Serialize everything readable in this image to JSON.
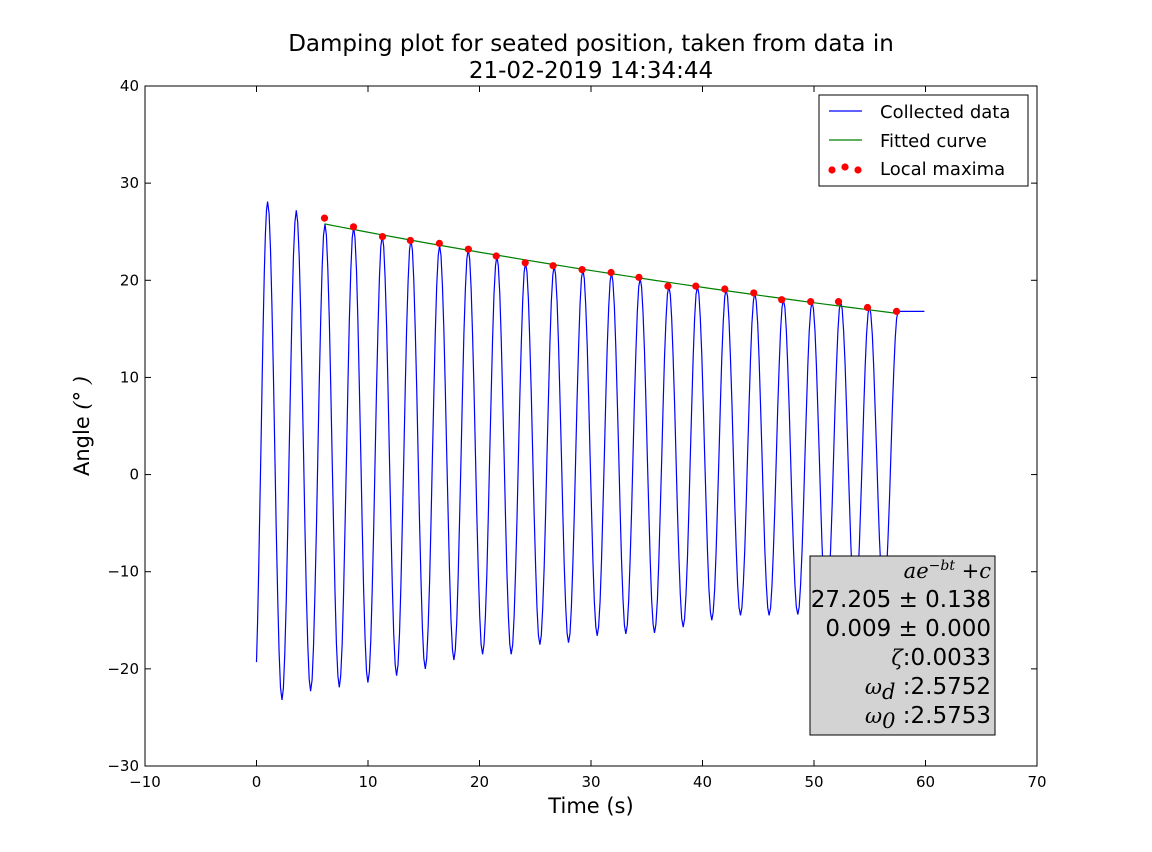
{
  "chart_data": {
    "type": "line",
    "title": [
      "Damping plot for seated position, taken from data in",
      "21-02-2019 14:34:44"
    ],
    "xlabel": "Time (s)",
    "ylabel": "Angle (°)",
    "ylabel_parts": {
      "text": "Angle ",
      "math": "(° )"
    },
    "xlim": [
      -10,
      70
    ],
    "ylim": [
      -30,
      40
    ],
    "xticks": [
      -10,
      0,
      10,
      20,
      30,
      40,
      50,
      60,
      70
    ],
    "yticks": [
      -30,
      -20,
      -10,
      0,
      10,
      20,
      30,
      40
    ],
    "grid": false,
    "legend": {
      "placement": "top-right",
      "entries": [
        {
          "label": "Collected data",
          "style": "line",
          "color": "#0000ff"
        },
        {
          "label": "Fitted curve",
          "style": "line",
          "color": "#008000"
        },
        {
          "label": "Local maxima",
          "style": "dots",
          "color": "#ff0000"
        }
      ]
    },
    "series": [
      {
        "name": "Collected data",
        "color": "#0000ff",
        "kind": "damped-oscillation",
        "x_range": [
          0,
          59.9
        ],
        "period": 2.57,
        "first_peak": 1.0,
        "peaks": [
          28.1,
          27.2,
          25.8,
          25.5,
          24.6,
          24.2,
          23.6,
          23.2,
          22.5,
          21.8,
          21.5,
          21.1,
          20.8,
          20.2,
          19.4,
          19.4,
          19.1,
          18.7,
          18.0,
          17.8,
          17.8,
          17.3,
          16.8
        ],
        "troughs": [
          -23.2,
          -22.3,
          -21.9,
          -21.4,
          -20.7,
          -20.0,
          -19.1,
          -18.5,
          -18.5,
          -17.5,
          -17.3,
          -16.6,
          -16.4,
          -16.3,
          -15.7,
          -15.0,
          -14.5,
          -14.5,
          -14.4,
          -14.0,
          -13.5,
          -12.7
        ],
        "start_value": -19.3,
        "end_value": 16.8
      },
      {
        "name": "Fitted curve",
        "color": "#008000",
        "kind": "exponential",
        "x_range": [
          6.1,
          57.4
        ],
        "y_range": [
          25.8,
          16.6
        ]
      },
      {
        "name": "Local maxima",
        "color": "#ff0000",
        "kind": "scatter",
        "x": [
          6.1,
          8.7,
          11.3,
          13.8,
          16.4,
          19.0,
          21.5,
          24.1,
          26.6,
          29.2,
          31.8,
          34.3,
          36.9,
          39.4,
          42.0,
          44.6,
          47.1,
          49.7,
          52.2,
          54.8,
          57.4
        ],
        "y": [
          26.4,
          25.5,
          24.5,
          24.1,
          23.8,
          23.2,
          22.5,
          21.8,
          21.5,
          21.1,
          20.8,
          20.3,
          19.4,
          19.4,
          19.1,
          18.7,
          18.0,
          17.8,
          17.8,
          17.2,
          16.8
        ]
      }
    ],
    "annotation_box": {
      "background": "#d3d3d3",
      "lines": [
        {
          "kind": "math",
          "text": "ae^{−bt} + c"
        },
        {
          "kind": "text",
          "text": "27.205 ± 0.138"
        },
        {
          "kind": "text",
          "text": "0.009 ± 0.000"
        },
        {
          "kind": "symbol",
          "symbol": "ζ",
          "text": ":0.0033"
        },
        {
          "kind": "symbol",
          "symbol": "ω",
          "sub": "d",
          "text": " :2.5752"
        },
        {
          "kind": "symbol",
          "symbol": "ω",
          "sub": "0",
          "text": " :2.5753"
        }
      ]
    }
  }
}
